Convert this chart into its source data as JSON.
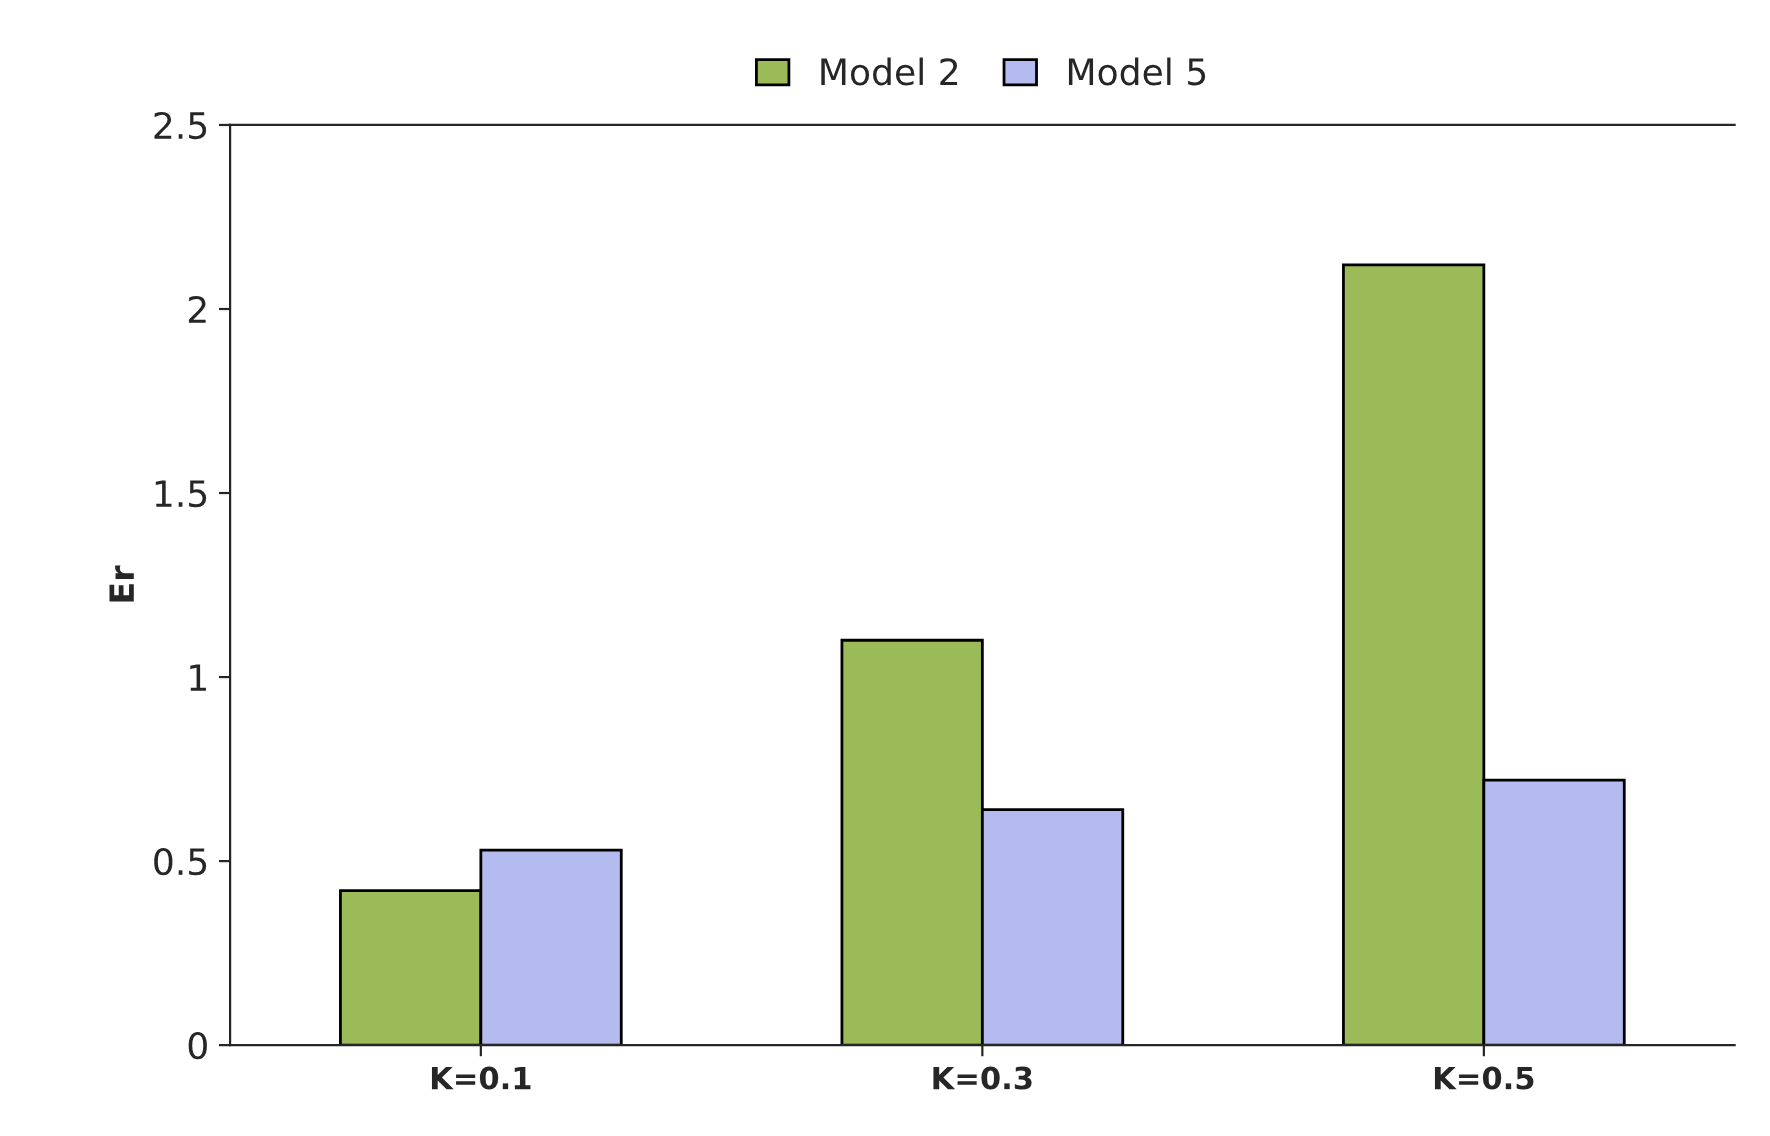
{
  "chart_data": {
    "type": "bar",
    "ylabel": "Er",
    "categories": [
      "K=0.1",
      "K=0.3",
      "K=0.5"
    ],
    "series": [
      {
        "name": "Model 2",
        "color": "#9bbb59",
        "values": [
          0.42,
          1.1,
          2.12
        ]
      },
      {
        "name": "Model 5",
        "color": "#b4bbee",
        "values": [
          0.53,
          0.64,
          0.72
        ]
      }
    ],
    "ylim": [
      0,
      2.5
    ],
    "yticks": [
      0,
      0.5,
      1,
      1.5,
      2,
      2.5
    ],
    "grid": false,
    "legend": "top"
  }
}
